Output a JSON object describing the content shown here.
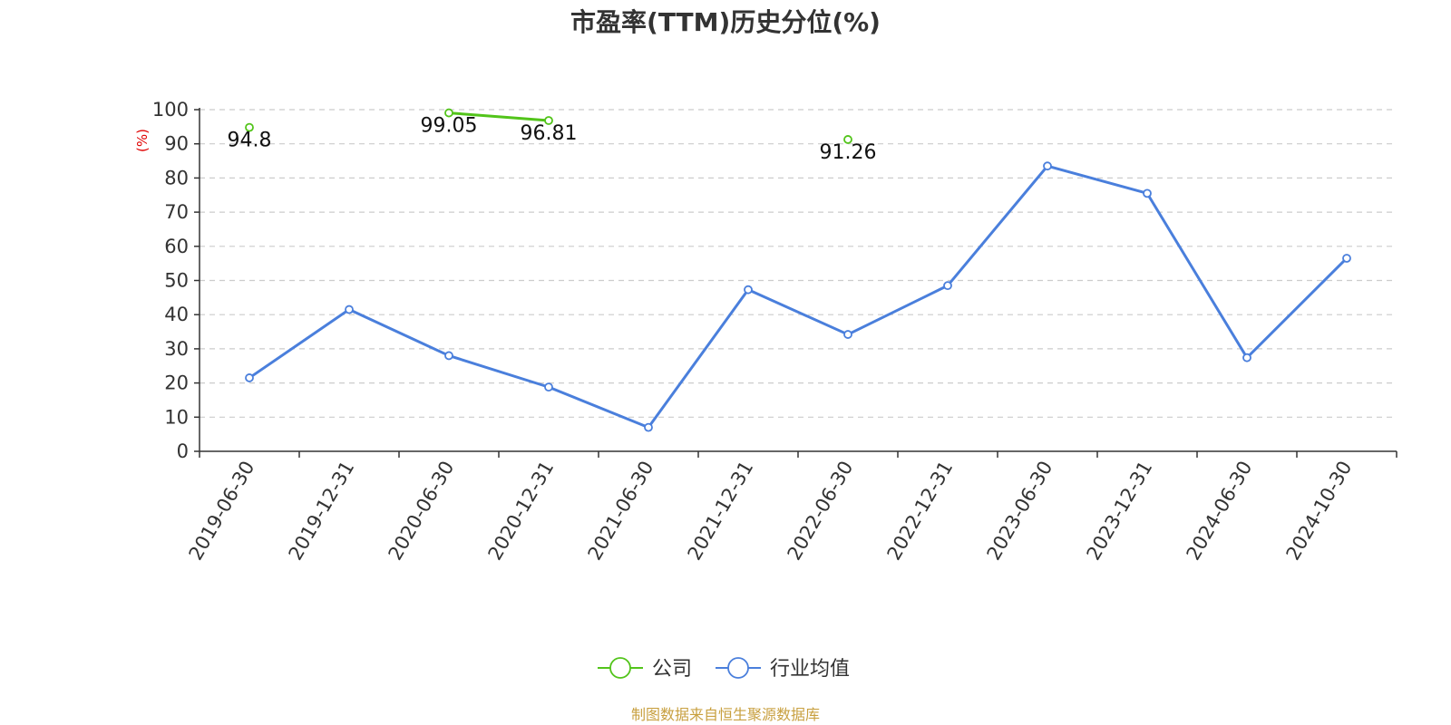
{
  "chart_data": {
    "type": "line",
    "title": "市盈率(TTM)历史分位(%)",
    "ylabel": "(%)",
    "ylim": [
      0,
      100
    ],
    "yticks": [
      "0",
      "10",
      "20",
      "30",
      "40",
      "50",
      "60",
      "70",
      "80",
      "90",
      "100"
    ],
    "categories": [
      "2019-06-30",
      "2019-12-31",
      "2020-06-30",
      "2020-12-31",
      "2021-06-30",
      "2021-12-31",
      "2022-06-30",
      "2022-12-31",
      "2023-06-30",
      "2023-12-31",
      "2024-06-30",
      "2024-10-30"
    ],
    "series": [
      {
        "name": "公司",
        "color": "#52c41a",
        "values": [
          94.8,
          null,
          99.05,
          96.81,
          null,
          null,
          91.26,
          null,
          null,
          null,
          null,
          null
        ],
        "labels": [
          "94.8",
          "",
          "99.05",
          "96.81",
          "",
          "",
          "91.26",
          "",
          "",
          "",
          "",
          ""
        ]
      },
      {
        "name": "行业均值",
        "color": "#4a7fdc",
        "values": [
          21.5,
          41.5,
          28.0,
          18.8,
          7.0,
          47.3,
          34.2,
          48.5,
          83.5,
          75.5,
          27.4,
          56.5
        ]
      }
    ],
    "grid": "horizontal dashed",
    "legend_position": "bottom-center"
  },
  "source": {
    "text": "制图数据来自恒生聚源数据库",
    "color": "#c8a040"
  }
}
